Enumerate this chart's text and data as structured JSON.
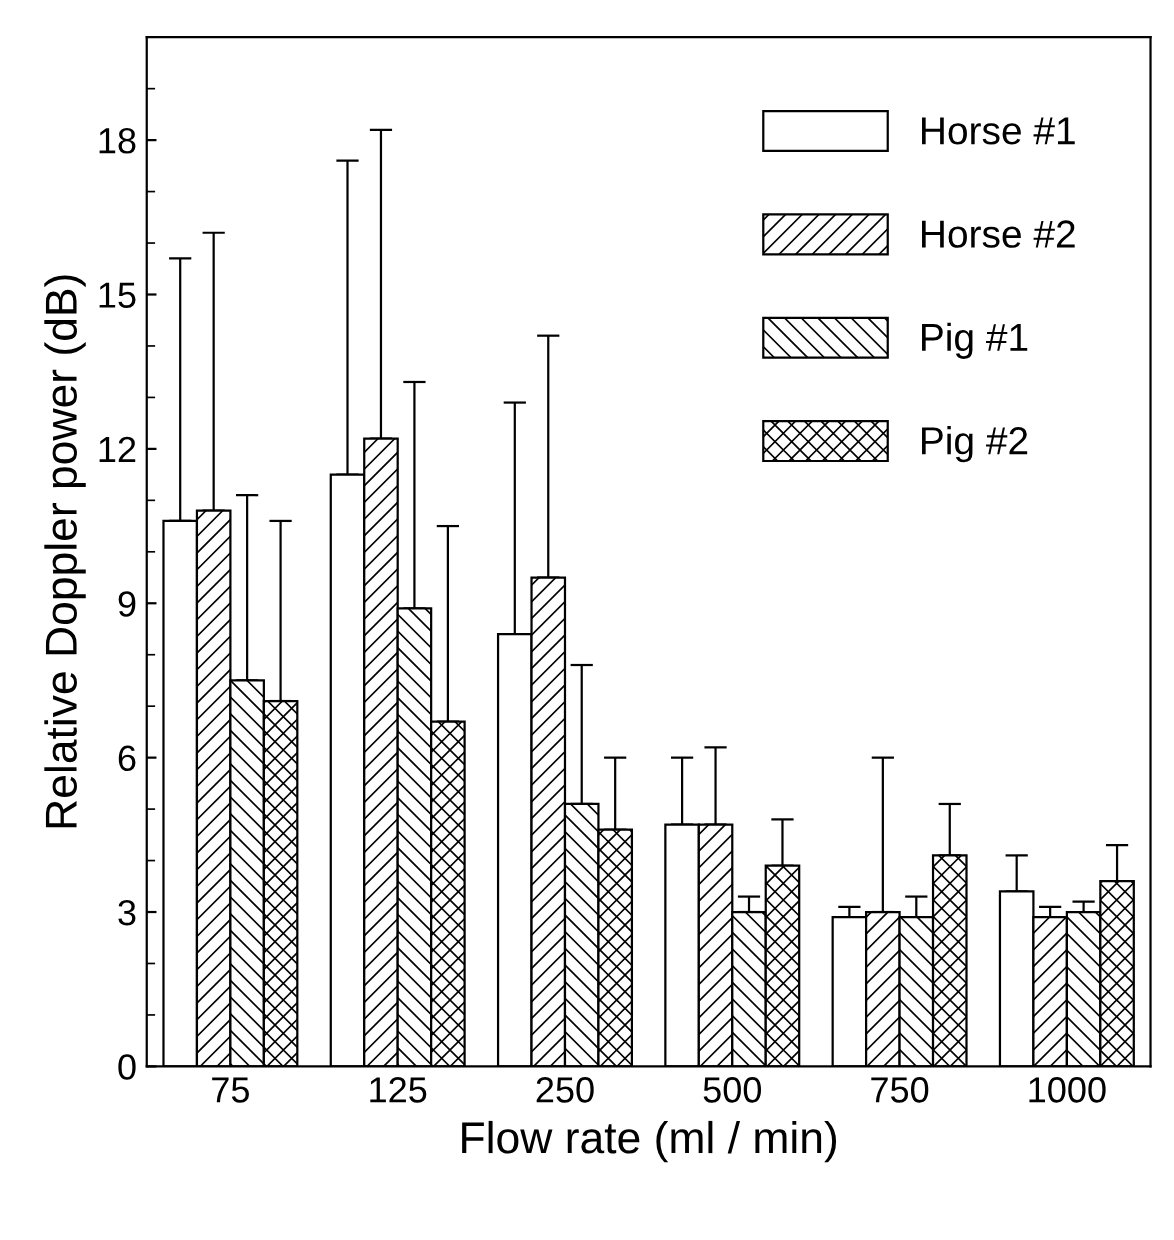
{
  "chart_data": {
    "type": "bar",
    "xlabel": "Flow rate (ml / min)",
    "ylabel": "Relative Doppler power (dB)",
    "categories": [
      "75",
      "125",
      "250",
      "500",
      "750",
      "1000"
    ],
    "series": [
      {
        "name": "Horse #1",
        "color": "#ffffff",
        "values": [
          10.6,
          11.5,
          8.4,
          4.7,
          2.9,
          3.4
        ],
        "errors": [
          [
            10.6,
            15.7
          ],
          [
            11.5,
            17.6
          ],
          [
            8.4,
            12.9
          ],
          [
            4.7,
            6.0
          ],
          [
            2.9,
            3.1
          ],
          [
            3.4,
            4.1
          ]
        ]
      },
      {
        "name": "Horse #2",
        "color": "#000000",
        "values": [
          10.8,
          12.2,
          9.5,
          4.7,
          3.0,
          2.9
        ],
        "errors": [
          [
            10.8,
            16.2
          ],
          [
            12.2,
            18.2
          ],
          [
            9.5,
            14.2
          ],
          [
            4.7,
            6.2
          ],
          [
            3.0,
            6.0
          ],
          [
            2.9,
            3.1
          ]
        ]
      },
      {
        "name": "Pig #1",
        "color": "#000000",
        "values": [
          7.5,
          8.9,
          5.1,
          3.0,
          2.9,
          3.0
        ],
        "errors": [
          [
            7.5,
            11.1
          ],
          [
            8.9,
            13.3
          ],
          [
            5.1,
            7.8
          ],
          [
            3.0,
            3.3
          ],
          [
            2.9,
            3.3
          ],
          [
            3.0,
            3.2
          ]
        ]
      },
      {
        "name": "Pig #2",
        "color": "#000000",
        "values": [
          7.1,
          6.7,
          4.6,
          3.9,
          4.1,
          3.6
        ],
        "errors": [
          [
            7.1,
            10.6
          ],
          [
            6.7,
            10.5
          ],
          [
            4.6,
            6.0
          ],
          [
            3.9,
            4.8
          ],
          [
            4.1,
            5.1
          ],
          [
            3.6,
            4.3
          ]
        ]
      }
    ],
    "ylim": [
      0,
      20
    ],
    "yticks": [
      0,
      3,
      6,
      9,
      12,
      15,
      18
    ],
    "grid": false,
    "legend": "top right"
  }
}
